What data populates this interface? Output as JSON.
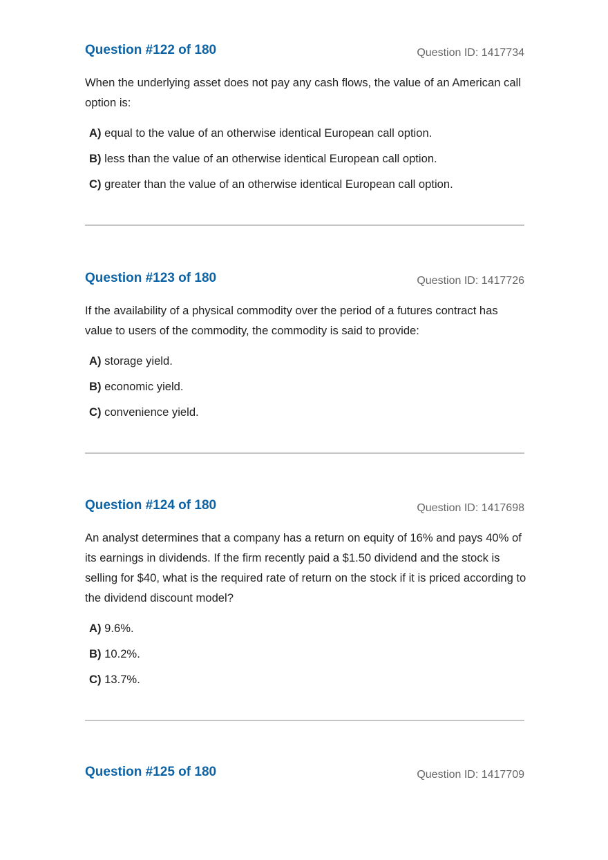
{
  "questions": [
    {
      "title": "Question #122 of 180",
      "id_label": "Question ID: 1417734",
      "text": "When the underlying asset does not pay any cash flows, the value of an American call option is:",
      "options": [
        {
          "letter": "A)",
          "text": "equal to the value of an otherwise identical European call option."
        },
        {
          "letter": "B)",
          "text": "less than the value of an otherwise identical European call option."
        },
        {
          "letter": "C)",
          "text": "greater than the value of an otherwise identical European call option."
        }
      ]
    },
    {
      "title": "Question #123 of 180",
      "id_label": "Question ID: 1417726",
      "text": "If the availability of a physical commodity over the period of a futures contract has value to users of the commodity, the commodity is said to provide:",
      "options": [
        {
          "letter": "A)",
          "text": "storage yield."
        },
        {
          "letter": "B)",
          "text": "economic yield."
        },
        {
          "letter": "C)",
          "text": "convenience yield."
        }
      ]
    },
    {
      "title": "Question #124 of 180",
      "id_label": "Question ID: 1417698",
      "text": "An analyst determines that a company has a return on equity of 16% and pays 40% of its earnings in dividends. If the firm recently paid a $1.50 dividend and the stock is selling for $40, what is the required rate of return on the stock if it is priced according to the dividend discount model?",
      "options": [
        {
          "letter": "A)",
          "text": "9.6%."
        },
        {
          "letter": "B)",
          "text": "10.2%."
        },
        {
          "letter": "C)",
          "text": "13.7%."
        }
      ]
    },
    {
      "title": "Question #125 of 180",
      "id_label": "Question ID: 1417709"
    }
  ]
}
